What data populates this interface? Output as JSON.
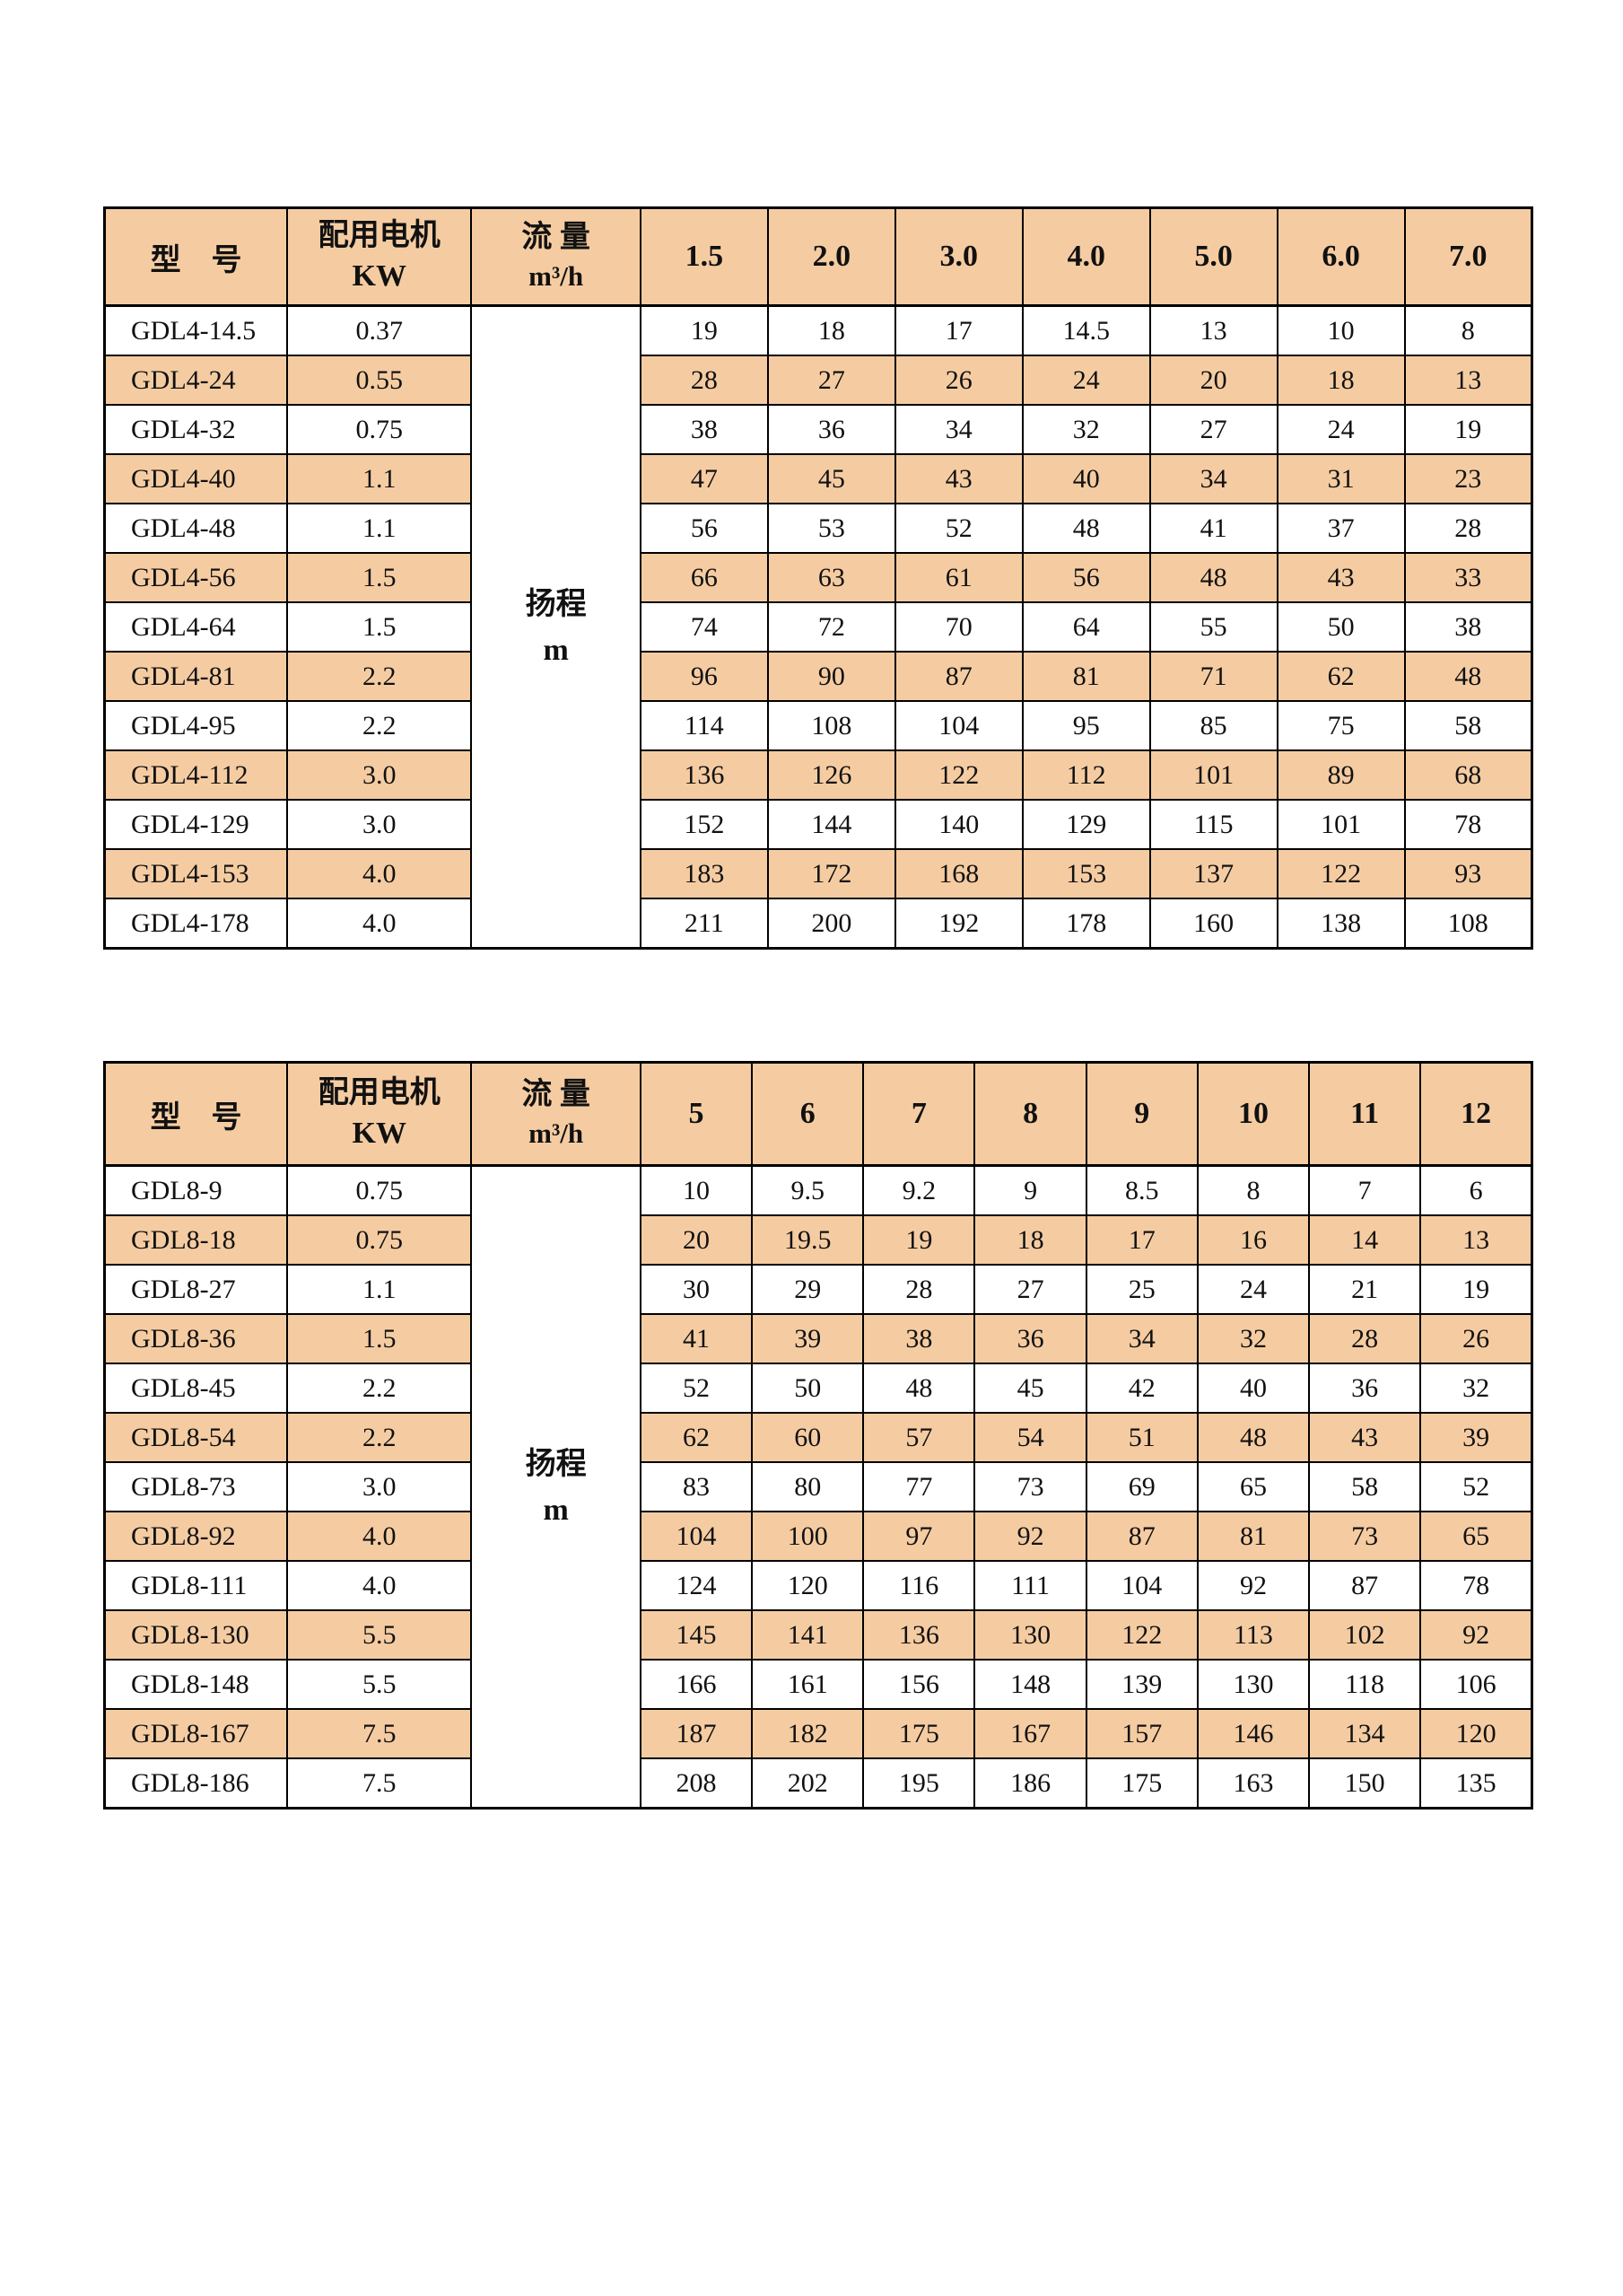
{
  "page": {
    "background": "#ffffff",
    "accent_peach": "#f5cca2",
    "border_color": "#000000"
  },
  "tables": [
    {
      "id": "gdl4",
      "headers": {
        "model": "型　号",
        "motor_line1": "配用电机",
        "motor_line2": "KW",
        "flow_line1": "流 量",
        "flow_line2": "m³/h"
      },
      "span_cell": {
        "line1": "扬程",
        "line2": "m"
      },
      "flow_columns": [
        "1.5",
        "2.0",
        "3.0",
        "4.0",
        "5.0",
        "6.0",
        "7.0"
      ],
      "rows": [
        {
          "model": "GDL4-14.5",
          "kw": "0.37",
          "values": [
            "19",
            "18",
            "17",
            "14.5",
            "13",
            "10",
            "8"
          ]
        },
        {
          "model": "GDL4-24",
          "kw": "0.55",
          "values": [
            "28",
            "27",
            "26",
            "24",
            "20",
            "18",
            "13"
          ]
        },
        {
          "model": "GDL4-32",
          "kw": "0.75",
          "values": [
            "38",
            "36",
            "34",
            "32",
            "27",
            "24",
            "19"
          ]
        },
        {
          "model": "GDL4-40",
          "kw": "1.1",
          "values": [
            "47",
            "45",
            "43",
            "40",
            "34",
            "31",
            "23"
          ]
        },
        {
          "model": "GDL4-48",
          "kw": "1.1",
          "values": [
            "56",
            "53",
            "52",
            "48",
            "41",
            "37",
            "28"
          ]
        },
        {
          "model": "GDL4-56",
          "kw": "1.5",
          "values": [
            "66",
            "63",
            "61",
            "56",
            "48",
            "43",
            "33"
          ]
        },
        {
          "model": "GDL4-64",
          "kw": "1.5",
          "values": [
            "74",
            "72",
            "70",
            "64",
            "55",
            "50",
            "38"
          ]
        },
        {
          "model": "GDL4-81",
          "kw": "2.2",
          "values": [
            "96",
            "90",
            "87",
            "81",
            "71",
            "62",
            "48"
          ]
        },
        {
          "model": "GDL4-95",
          "kw": "2.2",
          "values": [
            "114",
            "108",
            "104",
            "95",
            "85",
            "75",
            "58"
          ]
        },
        {
          "model": "GDL4-112",
          "kw": "3.0",
          "values": [
            "136",
            "126",
            "122",
            "112",
            "101",
            "89",
            "68"
          ]
        },
        {
          "model": "GDL4-129",
          "kw": "3.0",
          "values": [
            "152",
            "144",
            "140",
            "129",
            "115",
            "101",
            "78"
          ]
        },
        {
          "model": "GDL4-153",
          "kw": "4.0",
          "values": [
            "183",
            "172",
            "168",
            "153",
            "137",
            "122",
            "93"
          ]
        },
        {
          "model": "GDL4-178",
          "kw": "4.0",
          "values": [
            "211",
            "200",
            "192",
            "178",
            "160",
            "138",
            "108"
          ]
        }
      ]
    },
    {
      "id": "gdl8",
      "headers": {
        "model": "型　号",
        "motor_line1": "配用电机",
        "motor_line2": "KW",
        "flow_line1": "流 量",
        "flow_line2": "m³/h"
      },
      "span_cell": {
        "line1": "扬程",
        "line2": "m"
      },
      "flow_columns": [
        "5",
        "6",
        "7",
        "8",
        "9",
        "10",
        "11",
        "12"
      ],
      "rows": [
        {
          "model": "GDL8-9",
          "kw": "0.75",
          "values": [
            "10",
            "9.5",
            "9.2",
            "9",
            "8.5",
            "8",
            "7",
            "6"
          ]
        },
        {
          "model": "GDL8-18",
          "kw": "0.75",
          "values": [
            "20",
            "19.5",
            "19",
            "18",
            "17",
            "16",
            "14",
            "13"
          ]
        },
        {
          "model": "GDL8-27",
          "kw": "1.1",
          "values": [
            "30",
            "29",
            "28",
            "27",
            "25",
            "24",
            "21",
            "19"
          ]
        },
        {
          "model": "GDL8-36",
          "kw": "1.5",
          "values": [
            "41",
            "39",
            "38",
            "36",
            "34",
            "32",
            "28",
            "26"
          ]
        },
        {
          "model": "GDL8-45",
          "kw": "2.2",
          "values": [
            "52",
            "50",
            "48",
            "45",
            "42",
            "40",
            "36",
            "32"
          ]
        },
        {
          "model": "GDL8-54",
          "kw": "2.2",
          "values": [
            "62",
            "60",
            "57",
            "54",
            "51",
            "48",
            "43",
            "39"
          ]
        },
        {
          "model": "GDL8-73",
          "kw": "3.0",
          "values": [
            "83",
            "80",
            "77",
            "73",
            "69",
            "65",
            "58",
            "52"
          ]
        },
        {
          "model": "GDL8-92",
          "kw": "4.0",
          "values": [
            "104",
            "100",
            "97",
            "92",
            "87",
            "81",
            "73",
            "65"
          ]
        },
        {
          "model": "GDL8-111",
          "kw": "4.0",
          "values": [
            "124",
            "120",
            "116",
            "111",
            "104",
            "92",
            "87",
            "78"
          ]
        },
        {
          "model": "GDL8-130",
          "kw": "5.5",
          "values": [
            "145",
            "141",
            "136",
            "130",
            "122",
            "113",
            "102",
            "92"
          ]
        },
        {
          "model": "GDL8-148",
          "kw": "5.5",
          "values": [
            "166",
            "161",
            "156",
            "148",
            "139",
            "130",
            "118",
            "106"
          ]
        },
        {
          "model": "GDL8-167",
          "kw": "7.5",
          "values": [
            "187",
            "182",
            "175",
            "167",
            "157",
            "146",
            "134",
            "120"
          ]
        },
        {
          "model": "GDL8-186",
          "kw": "7.5",
          "values": [
            "208",
            "202",
            "195",
            "186",
            "175",
            "163",
            "150",
            "135"
          ]
        }
      ]
    }
  ]
}
